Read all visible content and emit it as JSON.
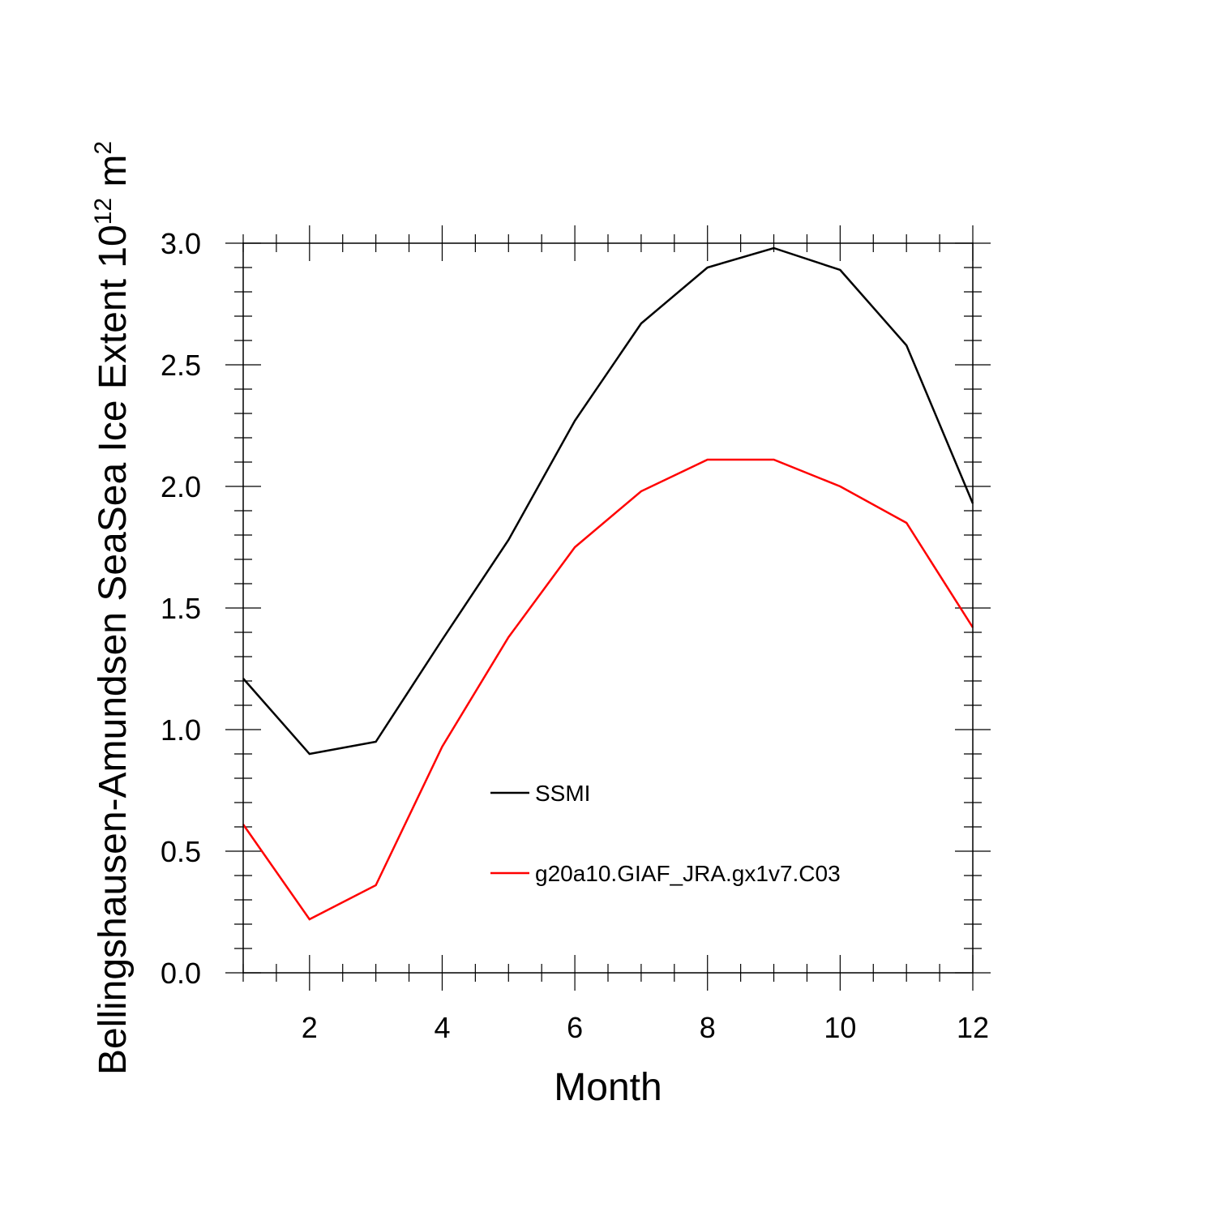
{
  "chart_data": {
    "type": "line",
    "title": "",
    "xlabel": "Month",
    "ylabel": {
      "main": "Bellingshausen-Amundsen SeaSea Ice Extent 10",
      "exponent": "12",
      "unit": " m",
      "unit_exponent": "2"
    },
    "xlim": [
      1,
      12
    ],
    "ylim": [
      0,
      3
    ],
    "x_ticks": [
      2,
      4,
      6,
      8,
      10,
      12
    ],
    "x_tick_labels": [
      "2",
      "4",
      "6",
      "8",
      "10",
      "12"
    ],
    "y_ticks": [
      0,
      0.5,
      1,
      1.5,
      2,
      2.5,
      3
    ],
    "y_tick_labels": [
      "0.0",
      "0.5",
      "1.0",
      "1.5",
      "2.0",
      "2.5",
      "3.0"
    ],
    "grid": false,
    "legend_position": "center",
    "x": [
      1,
      2,
      3,
      4,
      5,
      6,
      7,
      8,
      9,
      10,
      11,
      12
    ],
    "series": [
      {
        "name": "SSMI",
        "color": "#000000",
        "values": [
          1.21,
          0.9,
          0.95,
          1.37,
          1.78,
          2.27,
          2.67,
          2.9,
          2.98,
          2.89,
          2.58,
          1.93
        ]
      },
      {
        "name": "g20a10.GIAF_JRA.gx1v7.C03",
        "color": "#ff0000",
        "values": [
          0.61,
          0.22,
          0.36,
          0.93,
          1.38,
          1.75,
          1.98,
          2.11,
          2.11,
          2.0,
          1.85,
          1.42
        ]
      }
    ]
  }
}
